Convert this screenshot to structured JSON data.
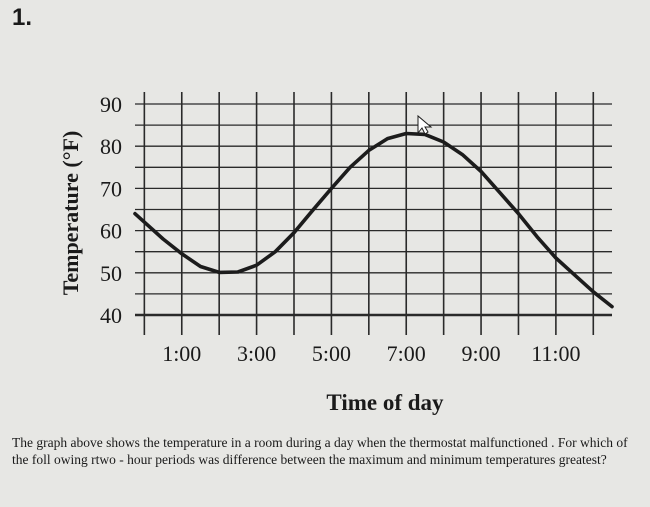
{
  "question_number": "1.",
  "question_text": "The graph above shows the temperature in a room during a day when the thermostat malfunctioned . For which of the foll owing rtwo - hour periods was difference between the maximum and minimum temperatures greatest?",
  "chart_data": {
    "type": "line",
    "xlabel": "Time of day",
    "ylabel": "Temperature (°F)",
    "x_ticks": [
      "1:00",
      "3:00",
      "5:00",
      "7:00",
      "9:00",
      "11:00"
    ],
    "y_ticks": [
      "40",
      "50",
      "60",
      "70",
      "80",
      "90"
    ],
    "ylim": [
      40,
      90
    ],
    "x_hour_range": [
      -0.25,
      12.5
    ],
    "grid": true,
    "series": [
      {
        "x": [
          -0.25,
          0.5,
          1.0,
          1.5,
          2.0,
          2.5,
          3.0,
          3.5,
          4.0,
          4.5,
          5.0,
          5.5,
          6.0,
          6.5,
          7.0,
          7.5,
          8.0,
          8.5,
          9.0,
          9.5,
          10.0,
          10.5,
          11.0,
          11.5,
          12.0,
          12.5
        ],
        "y": [
          64,
          58,
          54.5,
          51.5,
          50.1,
          50.2,
          51.8,
          55,
          59.5,
          64.8,
          70,
          75,
          79,
          81.8,
          83,
          82.8,
          81,
          78,
          74,
          69,
          64,
          58.5,
          53.5,
          49.5,
          45.5,
          42
        ]
      }
    ]
  }
}
